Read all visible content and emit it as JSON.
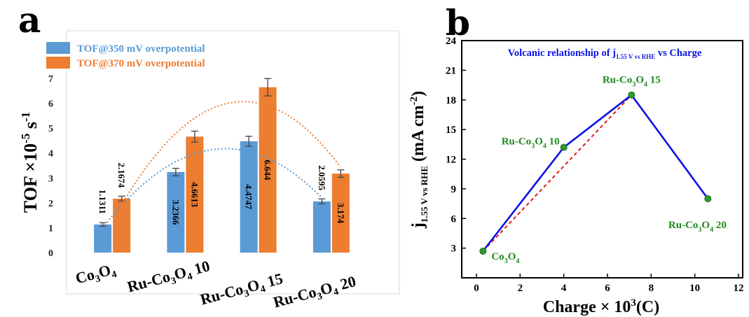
{
  "panel_letters": {
    "a": "a",
    "b": "b"
  },
  "chart_data": [
    {
      "type": "bar",
      "panel": "a",
      "title": "",
      "xlabel": "",
      "ylabel": "TOF ×10-5 s-1",
      "ylabel_main": "TOF ×10",
      "ylabel_exp": "-5",
      "ylabel_unit": "s",
      "ylabel_unit_exp": "-1",
      "ylim": [
        0,
        7
      ],
      "yticks": [
        0,
        1,
        2,
        3,
        4,
        5,
        6,
        7
      ],
      "categories": [
        "Co3O4",
        "Ru-Co3O4 10",
        "Ru-Co3O4 15",
        "Ru-Co3O4 20"
      ],
      "category_parts": [
        {
          "pre": "Co",
          "sub1": "3",
          "mid": "O",
          "sub2": "4",
          "post": ""
        },
        {
          "pre": "Ru-Co",
          "sub1": "3",
          "mid": "O",
          "sub2": "4",
          "post": " 10"
        },
        {
          "pre": "Ru-Co",
          "sub1": "3",
          "mid": "O",
          "sub2": "4",
          "post": " 15"
        },
        {
          "pre": "Ru-Co",
          "sub1": "3",
          "mid": "O",
          "sub2": "4",
          "post": " 20"
        }
      ],
      "series": [
        {
          "name": "TOF@350 mV overpotential",
          "color": "#5b9bd5",
          "values": [
            1.1311,
            3.2366,
            4.4747,
            2.0595
          ],
          "labels": [
            "1.1311",
            "3.2366",
            "4.4747",
            "2.0595"
          ],
          "errors": [
            0.07,
            0.15,
            0.2,
            0.1
          ]
        },
        {
          "name": "TOF@370 mV overpotential",
          "color": "#ed7d31",
          "values": [
            2.1674,
            4.6613,
            6.644,
            3.174
          ],
          "labels": [
            "2.1674",
            "4.6613",
            "6.644",
            "3.174"
          ],
          "errors": [
            0.1,
            0.22,
            0.35,
            0.15
          ]
        }
      ],
      "trendlines": true,
      "grid": false,
      "legend": "top-left"
    },
    {
      "type": "line",
      "panel": "b",
      "title": "Volcanic relationship of j1.55 V vs RHE vs Charge",
      "title_parts": {
        "pre": "Volcanic relationship of j",
        "sub": "1.55 V vs RHE",
        "post": "  vs Charge"
      },
      "xlabel": "Charge × 103(C)",
      "xlabel_parts": {
        "pre": "Charge",
        "times": "×",
        "base": "10",
        "exp": "3",
        "post": "(C)"
      },
      "ylabel": "j1.55 V vs RHE (mA cm-2)",
      "ylabel_parts": {
        "j": "j",
        "sub": "1.55 V vs RHE",
        "unit": "(mA cm",
        "exp": "-2",
        "close": ")"
      },
      "xlim": [
        -2,
        12
      ],
      "ylim": [
        0,
        24
      ],
      "xticks": [
        0,
        2,
        4,
        6,
        8,
        10,
        12
      ],
      "yticks": [
        3,
        6,
        9,
        12,
        15,
        18,
        21,
        24
      ],
      "x": [
        0.3,
        4.0,
        7.1,
        10.6
      ],
      "y": [
        2.7,
        13.2,
        18.5,
        8.0
      ],
      "point_labels": [
        {
          "pre": "Co",
          "sub1": "3",
          "mid": "O",
          "sub2": "4",
          "post": ""
        },
        {
          "pre": "Ru-Co",
          "sub1": "3",
          "mid": "O",
          "sub2": "4",
          "post": " 10"
        },
        {
          "pre": "Ru-Co",
          "sub1": "3",
          "mid": "O",
          "sub2": "4",
          "post": " 15"
        },
        {
          "pre": "Ru-Co",
          "sub1": "3",
          "mid": "O",
          "sub2": "4",
          "post": " 20"
        }
      ],
      "line_color": "#0a14e6",
      "marker_color": "#2e9a2e",
      "label_color": "#1f8a1f",
      "title_color": "#0a14e6",
      "trend_color": "#e01b1b",
      "grid": false
    }
  ]
}
